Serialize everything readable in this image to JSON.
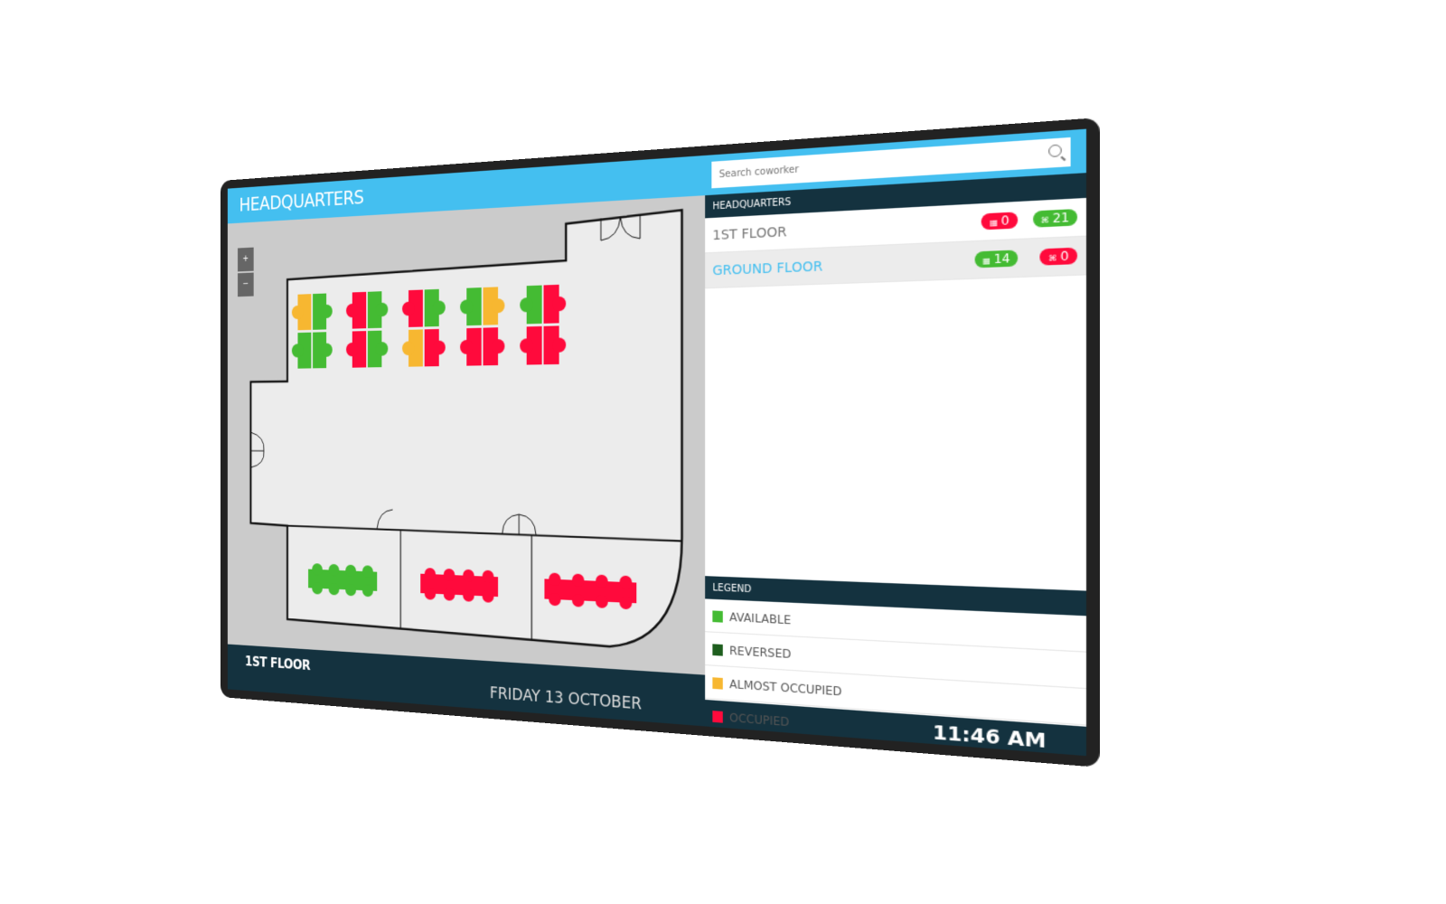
{
  "header": {
    "title": "HEADQUARTERS",
    "search_placeholder": "Search coworker"
  },
  "sidebar": {
    "group_title": "HEADQUARTERS",
    "floors": [
      {
        "label": "1ST FLOOR",
        "selected": false,
        "badges": [
          {
            "icon": "desk-icon",
            "value": "0",
            "color": "#ff0a3c"
          },
          {
            "icon": "chair-icon",
            "value": "21",
            "color": "#44bb33"
          }
        ]
      },
      {
        "label": "GROUND FLOOR",
        "selected": true,
        "badges": [
          {
            "icon": "desk-icon",
            "value": "14",
            "color": "#44bb33"
          },
          {
            "icon": "chair-icon",
            "value": "0",
            "color": "#ff0a3c"
          }
        ]
      }
    ],
    "legend_title": "LEGEND",
    "legend": [
      {
        "label": "AVAILABLE",
        "color": "#44bb33"
      },
      {
        "label": "REVERSED",
        "color": "#1e5e1e"
      },
      {
        "label": "ALMOST OCCUPIED",
        "color": "#f7b731"
      },
      {
        "label": "OCCUPIED",
        "color": "#ff0a3c"
      }
    ]
  },
  "map": {
    "zoom_in": "+",
    "zoom_out": "−",
    "status_colors": {
      "available": "#44bb33",
      "reserved": "#1e5e1e",
      "almost": "#f7b731",
      "occupied": "#ff0a3c"
    },
    "desk_clusters": [
      [
        "almost",
        "available",
        "available",
        "available"
      ],
      [
        "occupied",
        "available",
        "occupied",
        "available"
      ],
      [
        "occupied",
        "available",
        "almost",
        "occupied"
      ],
      [
        "available",
        "almost",
        "occupied",
        "occupied"
      ],
      [
        "available",
        "occupied",
        "occupied",
        "occupied"
      ]
    ],
    "meeting_tables": [
      "available",
      "occupied",
      "occupied"
    ]
  },
  "footer": {
    "floor": "1ST FLOOR",
    "date": "FRIDAY 13 OCTOBER",
    "time": "11:46 AM"
  },
  "colors": {
    "header": "#44bff0",
    "dark": "#14323f"
  }
}
